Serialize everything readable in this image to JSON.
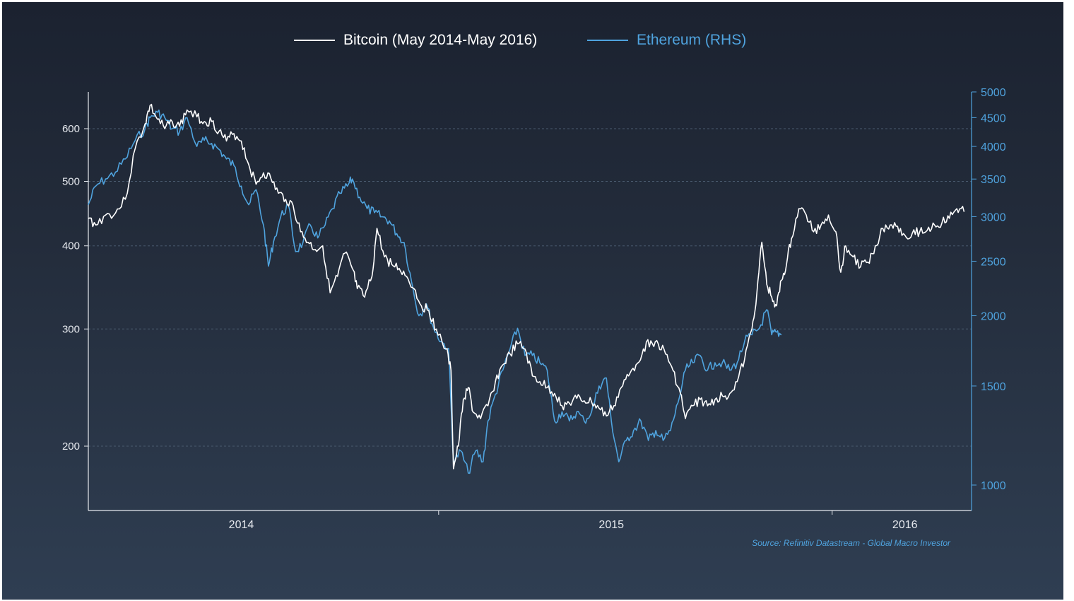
{
  "chart_data": {
    "type": "line",
    "title": "",
    "legend_position": "top",
    "grid": true,
    "x_ticks": [
      "2014",
      "2015",
      "2016"
    ],
    "y_left": {
      "scale": "log",
      "ticks": [
        200,
        300,
        400,
        500,
        600
      ]
    },
    "y_right": {
      "scale": "log",
      "ticks": [
        1000,
        1500,
        2000,
        2500,
        3000,
        3500,
        4000,
        4500,
        5000
      ]
    },
    "series": [
      {
        "name": "Bitcoin (May 2014-May 2016)",
        "axis": "left",
        "color": "#ffffff",
        "points": [
          [
            2013.55,
            440
          ],
          [
            2013.58,
            430
          ],
          [
            2013.62,
            445
          ],
          [
            2013.66,
            448
          ],
          [
            2013.7,
            470
          ],
          [
            2013.74,
            560
          ],
          [
            2013.78,
            610
          ],
          [
            2013.8,
            650
          ],
          [
            2013.83,
            620
          ],
          [
            2013.86,
            600
          ],
          [
            2013.89,
            615
          ],
          [
            2013.92,
            605
          ],
          [
            2013.95,
            640
          ],
          [
            2013.99,
            625
          ],
          [
            2014.02,
            615
          ],
          [
            2014.05,
            615
          ],
          [
            2014.08,
            595
          ],
          [
            2014.11,
            575
          ],
          [
            2014.14,
            590
          ],
          [
            2014.17,
            575
          ],
          [
            2014.2,
            530
          ],
          [
            2014.23,
            495
          ],
          [
            2014.26,
            515
          ],
          [
            2014.29,
            505
          ],
          [
            2014.32,
            480
          ],
          [
            2014.35,
            470
          ],
          [
            2014.38,
            460
          ],
          [
            2014.41,
            420
          ],
          [
            2014.44,
            405
          ],
          [
            2014.47,
            395
          ],
          [
            2014.5,
            400
          ],
          [
            2014.53,
            340
          ],
          [
            2014.56,
            360
          ],
          [
            2014.59,
            390
          ],
          [
            2014.62,
            370
          ],
          [
            2014.64,
            345
          ],
          [
            2014.67,
            335
          ],
          [
            2014.7,
            360
          ],
          [
            2014.72,
            425
          ],
          [
            2014.75,
            385
          ],
          [
            2014.78,
            375
          ],
          [
            2014.81,
            370
          ],
          [
            2014.84,
            360
          ],
          [
            2014.87,
            345
          ],
          [
            2014.9,
            325
          ],
          [
            2014.93,
            320
          ],
          [
            2014.96,
            300
          ],
          [
            2015.0,
            280
          ],
          [
            2015.02,
            260
          ],
          [
            2015.03,
            185
          ],
          [
            2015.05,
            200
          ],
          [
            2015.07,
            235
          ],
          [
            2015.09,
            245
          ],
          [
            2015.11,
            225
          ],
          [
            2015.14,
            220
          ],
          [
            2015.17,
            230
          ],
          [
            2015.2,
            250
          ],
          [
            2015.23,
            265
          ],
          [
            2015.26,
            275
          ],
          [
            2015.29,
            285
          ],
          [
            2015.32,
            280
          ],
          [
            2015.35,
            255
          ],
          [
            2015.38,
            250
          ],
          [
            2015.41,
            245
          ],
          [
            2015.44,
            240
          ],
          [
            2015.47,
            230
          ],
          [
            2015.5,
            232
          ],
          [
            2015.53,
            236
          ],
          [
            2015.56,
            234
          ],
          [
            2015.59,
            233
          ],
          [
            2015.62,
            228
          ],
          [
            2015.65,
            222
          ],
          [
            2015.68,
            230
          ],
          [
            2015.71,
            245
          ],
          [
            2015.74,
            255
          ],
          [
            2015.77,
            265
          ],
          [
            2015.8,
            280
          ],
          [
            2015.83,
            288
          ],
          [
            2015.86,
            285
          ],
          [
            2015.89,
            275
          ],
          [
            2015.92,
            260
          ],
          [
            2015.95,
            240
          ],
          [
            2015.97,
            220
          ],
          [
            2016.0,
            230
          ],
          [
            2016.03,
            235
          ],
          [
            2016.06,
            230
          ],
          [
            2016.09,
            235
          ],
          [
            2016.12,
            238
          ],
          [
            2016.15,
            240
          ],
          [
            2016.18,
            250
          ],
          [
            2016.21,
            270
          ],
          [
            2016.24,
            300
          ],
          [
            2016.26,
            340
          ],
          [
            2016.28,
            405
          ],
          [
            2016.3,
            350
          ],
          [
            2016.32,
            335
          ],
          [
            2016.34,
            325
          ],
          [
            2016.36,
            355
          ],
          [
            2016.38,
            375
          ],
          [
            2016.4,
            410
          ],
          [
            2016.43,
            455
          ],
          [
            2016.46,
            445
          ],
          [
            2016.49,
            420
          ],
          [
            2016.52,
            430
          ],
          [
            2016.55,
            445
          ],
          [
            2016.58,
            420
          ],
          [
            2016.6,
            365
          ],
          [
            2016.62,
            400
          ],
          [
            2016.65,
            385
          ],
          [
            2016.68,
            372
          ],
          [
            2016.71,
            378
          ],
          [
            2016.74,
            400
          ],
          [
            2016.77,
            425
          ],
          [
            2016.8,
            430
          ],
          [
            2016.83,
            428
          ],
          [
            2016.86,
            415
          ],
          [
            2016.89,
            418
          ],
          [
            2016.92,
            420
          ],
          [
            2016.95,
            422
          ],
          [
            2016.98,
            430
          ],
          [
            2017.01,
            433
          ],
          [
            2017.04,
            440
          ],
          [
            2017.07,
            455
          ],
          [
            2017.1,
            450
          ]
        ]
      },
      {
        "name": "Ethereum (RHS)",
        "axis": "right",
        "color": "#4fa3de",
        "points": [
          [
            2013.55,
            3150
          ],
          [
            2013.58,
            3400
          ],
          [
            2013.62,
            3500
          ],
          [
            2013.66,
            3600
          ],
          [
            2013.7,
            3800
          ],
          [
            2013.74,
            4100
          ],
          [
            2013.78,
            4300
          ],
          [
            2013.8,
            4500
          ],
          [
            2013.83,
            4600
          ],
          [
            2013.86,
            4500
          ],
          [
            2013.89,
            4300
          ],
          [
            2013.92,
            4250
          ],
          [
            2013.95,
            4500
          ],
          [
            2013.99,
            4000
          ],
          [
            2014.02,
            4100
          ],
          [
            2014.05,
            4050
          ],
          [
            2014.08,
            3950
          ],
          [
            2014.11,
            3800
          ],
          [
            2014.14,
            3700
          ],
          [
            2014.17,
            3400
          ],
          [
            2014.2,
            3150
          ],
          [
            2014.23,
            3350
          ],
          [
            2014.26,
            2900
          ],
          [
            2014.28,
            2450
          ],
          [
            2014.3,
            2700
          ],
          [
            2014.33,
            3000
          ],
          [
            2014.36,
            3150
          ],
          [
            2014.39,
            2600
          ],
          [
            2014.42,
            2700
          ],
          [
            2014.45,
            2900
          ],
          [
            2014.48,
            2750
          ],
          [
            2014.51,
            2900
          ],
          [
            2014.54,
            3100
          ],
          [
            2014.57,
            3300
          ],
          [
            2014.6,
            3400
          ],
          [
            2014.62,
            3500
          ],
          [
            2014.65,
            3250
          ],
          [
            2014.68,
            3100
          ],
          [
            2014.71,
            3050
          ],
          [
            2014.74,
            3000
          ],
          [
            2014.77,
            2950
          ],
          [
            2014.8,
            2800
          ],
          [
            2014.83,
            2700
          ],
          [
            2014.86,
            2300
          ],
          [
            2014.89,
            2000
          ],
          [
            2014.92,
            2100
          ],
          [
            2014.95,
            1900
          ],
          [
            2014.98,
            1800
          ],
          [
            2015.01,
            1750
          ],
          [
            2015.03,
            1100
          ],
          [
            2015.06,
            1150
          ],
          [
            2015.09,
            1050
          ],
          [
            2015.12,
            1150
          ],
          [
            2015.15,
            1100
          ],
          [
            2015.17,
            1300
          ],
          [
            2015.2,
            1450
          ],
          [
            2015.23,
            1600
          ],
          [
            2015.26,
            1750
          ],
          [
            2015.29,
            1900
          ],
          [
            2015.32,
            1700
          ],
          [
            2015.35,
            1700
          ],
          [
            2015.38,
            1650
          ],
          [
            2015.41,
            1600
          ],
          [
            2015.44,
            1300
          ],
          [
            2015.47,
            1350
          ],
          [
            2015.5,
            1300
          ],
          [
            2015.53,
            1350
          ],
          [
            2015.56,
            1300
          ],
          [
            2015.59,
            1350
          ],
          [
            2015.62,
            1500
          ],
          [
            2015.65,
            1550
          ],
          [
            2015.67,
            1300
          ],
          [
            2015.7,
            1100
          ],
          [
            2015.73,
            1200
          ],
          [
            2015.76,
            1250
          ],
          [
            2015.79,
            1300
          ],
          [
            2015.82,
            1200
          ],
          [
            2015.85,
            1250
          ],
          [
            2015.88,
            1200
          ],
          [
            2015.91,
            1250
          ],
          [
            2015.94,
            1400
          ],
          [
            2015.97,
            1600
          ],
          [
            2016.0,
            1650
          ],
          [
            2016.03,
            1700
          ],
          [
            2016.06,
            1600
          ],
          [
            2016.09,
            1650
          ],
          [
            2016.12,
            1650
          ],
          [
            2016.15,
            1600
          ],
          [
            2016.18,
            1650
          ],
          [
            2016.21,
            1800
          ],
          [
            2016.24,
            1850
          ],
          [
            2016.27,
            1900
          ],
          [
            2016.3,
            2050
          ],
          [
            2016.32,
            1850
          ],
          [
            2016.34,
            1870
          ],
          [
            2016.36,
            1850
          ]
        ]
      }
    ]
  },
  "source_text": "Source: Refinitiv Datastream - Global Macro Investor",
  "colors": {
    "bitcoin": "#ffffff",
    "ethereum": "#4fa3de",
    "axis": "#e6e9ee",
    "grid": "#4a5a6e"
  }
}
